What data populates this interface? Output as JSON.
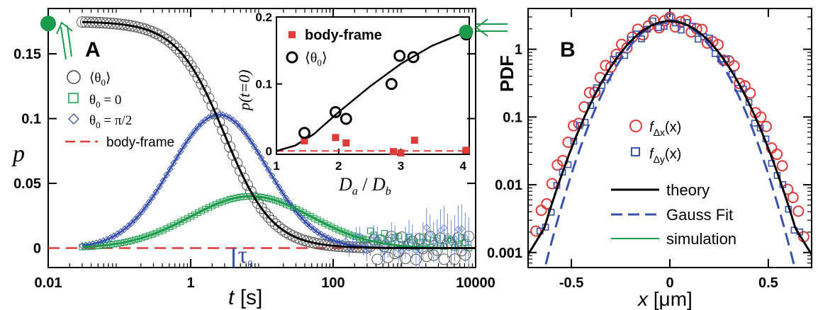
{
  "colors": {
    "theory": "#000000",
    "fixed_angle_0": "#1a9a4a",
    "fixed_angle_pi2": "#3a50b0",
    "body_frame": "#e03a3a",
    "light_blue": "#6f8fd0",
    "marker_green": "#1a9a4a"
  },
  "chart_data": [
    {
      "panel": "A",
      "type": "scatter",
      "xscale": "log",
      "xlim": [
        0.01,
        10000
      ],
      "ylim": [
        -0.015,
        0.185
      ],
      "xticks": [
        {
          "value": 0.01,
          "label": "0.01"
        },
        {
          "value": 1,
          "label": "1"
        },
        {
          "value": 100,
          "label": "100"
        },
        {
          "value": 10000,
          "label": "10000"
        }
      ],
      "yticks": [
        {
          "value": 0,
          "label": "0"
        },
        {
          "value": 0.05,
          "label": "0.05"
        },
        {
          "value": 0.1,
          "label": "0.1"
        },
        {
          "value": 0.15,
          "label": "0.15"
        }
      ],
      "xlabel_var": "t",
      "xlabel_unit": "[s]",
      "ylabel": "p",
      "annotation": "τ",
      "annotation_sub": "θ",
      "annotation_x": 4,
      "legend": {
        "placement": "left",
        "entries": [
          {
            "symbol": "circle",
            "label": "⟨θ",
            "sub": "0",
            "tail": "⟩"
          },
          {
            "symbol": "square",
            "label": "θ",
            "sub": "0",
            "tail": " = 0"
          },
          {
            "symbol": "diamond",
            "label": "θ",
            "sub": "0",
            "tail": " = π/2"
          },
          {
            "symbol": "dash",
            "label": "body-frame",
            "sub": "",
            "tail": ""
          }
        ]
      },
      "series": [
        {
          "name": "⟨θ0⟩",
          "marker": "circle",
          "model": "logistic_decay",
          "amplitude": 0.175,
          "t_half": 3.0,
          "steepness": 1.3
        },
        {
          "name": "θ0 = 0",
          "marker": "square",
          "model": "lognormal_bump",
          "amplitude": 0.04,
          "t_peak": 7.0,
          "width": 1.2
        },
        {
          "name": "θ0 = π/2",
          "marker": "diamond",
          "model": "lognormal_bump",
          "amplitude": 0.103,
          "t_peak": 2.5,
          "width": 0.95
        },
        {
          "name": "body-frame",
          "marker": "dash",
          "model": "constant",
          "value": 0
        }
      ],
      "highlight_point": {
        "x": 0.01,
        "y": 0.18
      }
    },
    {
      "panel": "A-inset",
      "type": "scatter",
      "xlim": [
        1,
        4.1
      ],
      "ylim": [
        -0.005,
        0.2
      ],
      "xticks": [
        {
          "value": 1,
          "label": "1"
        },
        {
          "value": 2,
          "label": "2"
        },
        {
          "value": 3,
          "label": "3"
        },
        {
          "value": 4,
          "label": "4"
        }
      ],
      "yticks": [
        {
          "value": 0,
          "label": "0"
        },
        {
          "value": 0.1,
          "label": "0.1"
        },
        {
          "value": 0.2,
          "label": "0.2"
        }
      ],
      "xlabel_a": "D",
      "xlabel_a_sub": "a",
      "xlabel_sep": " / ",
      "xlabel_b": "D",
      "xlabel_b_sub": "b",
      "ylabel": "p(t=0)",
      "legend": [
        {
          "symbol": "square-filled",
          "label": "body-frame"
        },
        {
          "symbol": "circle",
          "label": "⟨θ",
          "sub": "0",
          "tail": "⟩"
        }
      ],
      "series": [
        {
          "name": "⟨θ0⟩",
          "marker": "circle",
          "points": [
            [
              1.45,
              0.027
            ],
            [
              1.95,
              0.058
            ],
            [
              2.12,
              0.048
            ],
            [
              2.85,
              0.1
            ],
            [
              2.98,
              0.142
            ],
            [
              3.2,
              0.14
            ],
            [
              4.05,
              0.174
            ]
          ]
        },
        {
          "name": "body-frame",
          "marker": "square-filled",
          "points": [
            [
              1.45,
              0.015
            ],
            [
              1.95,
              0.02
            ],
            [
              2.12,
              0.012
            ],
            [
              2.88,
              -0.001
            ],
            [
              3.0,
              -0.003
            ],
            [
              3.22,
              0.016
            ],
            [
              4.05,
              0.001
            ]
          ]
        },
        {
          "name": "fit",
          "marker": "line",
          "points": [
            [
              1.0,
              0.0
            ],
            [
              1.3,
              0.008
            ],
            [
              1.6,
              0.025
            ],
            [
              2.0,
              0.058
            ],
            [
              2.5,
              0.096
            ],
            [
              3.0,
              0.13
            ],
            [
              3.5,
              0.157
            ],
            [
              4.0,
              0.176
            ],
            [
              4.1,
              0.18
            ]
          ]
        }
      ],
      "highlight_point": {
        "x": 4.05,
        "y": 0.18
      }
    },
    {
      "panel": "B",
      "type": "scatter",
      "yscale": "log",
      "xlim": [
        -0.72,
        0.72
      ],
      "ylim": [
        0.0006,
        4.0
      ],
      "xticks": [
        {
          "value": -0.5,
          "label": "-0.5"
        },
        {
          "value": 0,
          "label": "0"
        },
        {
          "value": 0.5,
          "label": "0.5"
        }
      ],
      "yticks": [
        {
          "value": 0.001,
          "label": "0.001"
        },
        {
          "value": 0.01,
          "label": "0.01"
        },
        {
          "value": 0.1,
          "label": "0.1"
        },
        {
          "value": 1,
          "label": "1"
        }
      ],
      "xlabel_var": "x",
      "xlabel_unit": "[μm]",
      "ylabel": "PDF",
      "legend": [
        {
          "symbol": "circle",
          "label": "f",
          "sub": "Δx",
          "tail": "(x)"
        },
        {
          "symbol": "square",
          "label": "f",
          "sub": "Δy",
          "tail": "(x)"
        },
        {
          "symbol": "line-solid",
          "label": "theory"
        },
        {
          "symbol": "line-dashed",
          "label": "Gauss Fit"
        },
        {
          "symbol": "line-thin",
          "label": "simulation"
        }
      ],
      "series": [
        {
          "name": "theory",
          "model": "exp_abs_gauss",
          "peak": 2.6,
          "sigma": 0.17,
          "tail": 0.5
        },
        {
          "name": "Gauss Fit",
          "model": "gauss",
          "peak": 2.6,
          "sigma": 0.155
        },
        {
          "name": "simulation",
          "model": "exp_abs_gauss",
          "peak": 2.6,
          "sigma": 0.17,
          "tail": 0.5
        },
        {
          "name": "f_Δx(x)",
          "marker": "circle",
          "model": "exp_abs_gauss",
          "peak": 2.6,
          "sigma": 0.18,
          "tail": 0.45
        },
        {
          "name": "f_Δy(x)",
          "marker": "square",
          "model": "exp_abs_gauss",
          "peak": 2.5,
          "sigma": 0.17,
          "tail": 0.5
        }
      ]
    }
  ]
}
